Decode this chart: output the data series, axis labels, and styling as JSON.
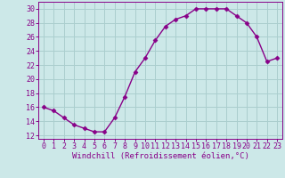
{
  "x": [
    0,
    1,
    2,
    3,
    4,
    5,
    6,
    7,
    8,
    9,
    10,
    11,
    12,
    13,
    14,
    15,
    16,
    17,
    18,
    19,
    20,
    21,
    22,
    23
  ],
  "y": [
    16,
    15.5,
    14.5,
    13.5,
    13,
    12.5,
    12.5,
    14.5,
    17.5,
    21,
    23,
    25.5,
    27.5,
    28.5,
    29,
    30,
    30,
    30,
    30,
    29,
    28,
    26,
    22.5,
    23
  ],
  "line_color": "#880088",
  "marker": "D",
  "marker_size": 2.5,
  "bg_color": "#cce8e8",
  "grid_color": "#aacece",
  "xlabel": "Windchill (Refroidissement éolien,°C)",
  "xlim": [
    -0.5,
    23.5
  ],
  "ylim": [
    11.5,
    31.0
  ],
  "yticks": [
    12,
    14,
    16,
    18,
    20,
    22,
    24,
    26,
    28,
    30
  ],
  "xticks": [
    0,
    1,
    2,
    3,
    4,
    5,
    6,
    7,
    8,
    9,
    10,
    11,
    12,
    13,
    14,
    15,
    16,
    17,
    18,
    19,
    20,
    21,
    22,
    23
  ],
  "xlabel_fontsize": 6.5,
  "tick_fontsize": 6.0,
  "line_color2": "#880088",
  "axis_color": "#880088",
  "lw": 1.0
}
